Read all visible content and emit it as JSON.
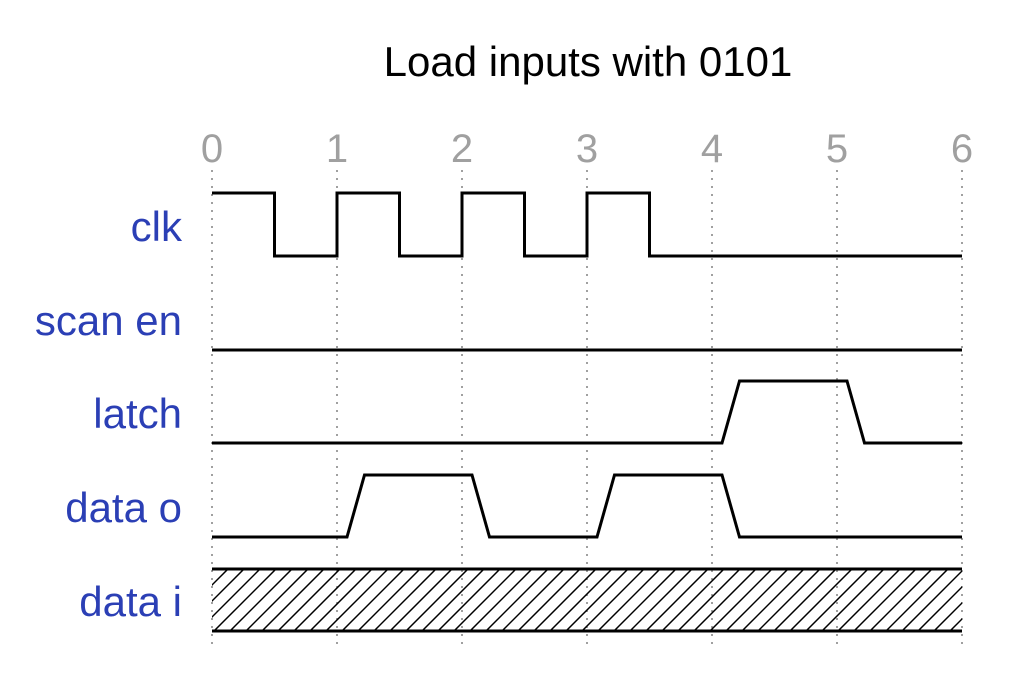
{
  "title": "Load inputs with 0101",
  "colors": {
    "label": "#2b3fb5",
    "tick": "#a0a0a0",
    "wave": "#000000"
  },
  "ticks": [
    "0",
    "1",
    "2",
    "3",
    "4",
    "5",
    "6"
  ],
  "signals": [
    {
      "name": "clk",
      "type": "digital",
      "points": [
        [
          0,
          1
        ],
        [
          0.5,
          1
        ],
        [
          0.5,
          0
        ],
        [
          1,
          0
        ],
        [
          1,
          1
        ],
        [
          1.5,
          1
        ],
        [
          1.5,
          0
        ],
        [
          2,
          0
        ],
        [
          2,
          1
        ],
        [
          2.5,
          1
        ],
        [
          2.5,
          0
        ],
        [
          3,
          0
        ],
        [
          3,
          1
        ],
        [
          3.5,
          1
        ],
        [
          3.5,
          0
        ],
        [
          6,
          0
        ]
      ]
    },
    {
      "name": "scan en",
      "type": "digital",
      "points": [
        [
          0,
          0
        ],
        [
          6,
          0
        ]
      ]
    },
    {
      "name": "latch",
      "type": "digital",
      "points": [
        [
          0,
          0
        ],
        [
          4.08,
          0
        ],
        [
          4.22,
          1
        ],
        [
          5.08,
          1
        ],
        [
          5.22,
          0
        ],
        [
          6,
          0
        ]
      ]
    },
    {
      "name": "data o",
      "type": "digital",
      "points": [
        [
          0,
          0
        ],
        [
          1.08,
          0
        ],
        [
          1.22,
          1
        ],
        [
          2.08,
          1
        ],
        [
          2.22,
          0
        ],
        [
          3.08,
          0
        ],
        [
          3.22,
          1
        ],
        [
          4.08,
          1
        ],
        [
          4.22,
          0
        ],
        [
          6,
          0
        ]
      ]
    },
    {
      "name": "data i",
      "type": "unknown-bus",
      "points": [
        [
          0,
          0
        ],
        [
          6,
          0
        ]
      ]
    }
  ]
}
